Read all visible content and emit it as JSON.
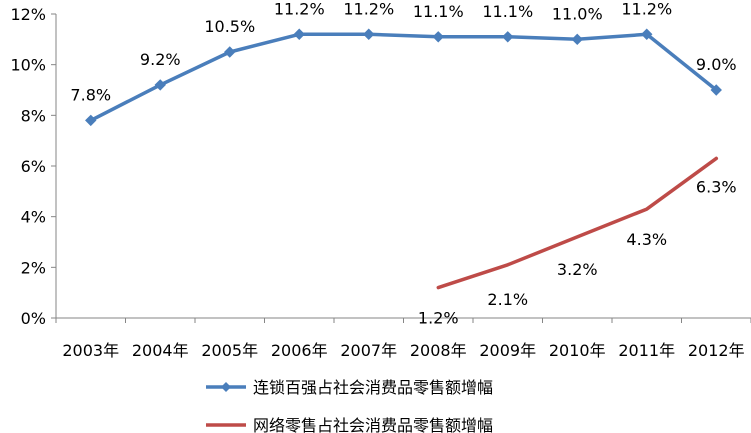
{
  "chart_data": {
    "type": "line",
    "categories": [
      "2003年",
      "2004年",
      "2005年",
      "2006年",
      "2007年",
      "2008年",
      "2009年",
      "2010年",
      "2011年",
      "2012年"
    ],
    "ylim": [
      0,
      12
    ],
    "yticks": [
      "0%",
      "2%",
      "4%",
      "6%",
      "8%",
      "10%",
      "12%"
    ],
    "grid": false,
    "legend_position": "bottom",
    "series": [
      {
        "name": "连锁百强占社会消费品零售额增幅",
        "color": "#4A7EBB",
        "marker": "diamond",
        "values": [
          7.8,
          9.2,
          10.5,
          11.2,
          11.2,
          11.1,
          11.1,
          11.0,
          11.2,
          9.0
        ],
        "labels": [
          "7.8%",
          "9.2%",
          "10.5%",
          "11.2%",
          "11.2%",
          "11.1%",
          "11.1%",
          "11.0%",
          "11.2%",
          "9.0%"
        ]
      },
      {
        "name": "网络零售占社会消费品零售额增幅",
        "color": "#BE4B48",
        "marker": "none",
        "values": [
          null,
          null,
          null,
          null,
          null,
          1.2,
          2.1,
          3.2,
          4.3,
          6.3
        ],
        "labels": [
          "",
          "",
          "",
          "",
          "",
          "1.2%",
          "2.1%",
          "3.2%",
          "4.3%",
          "6.3%"
        ]
      }
    ]
  }
}
